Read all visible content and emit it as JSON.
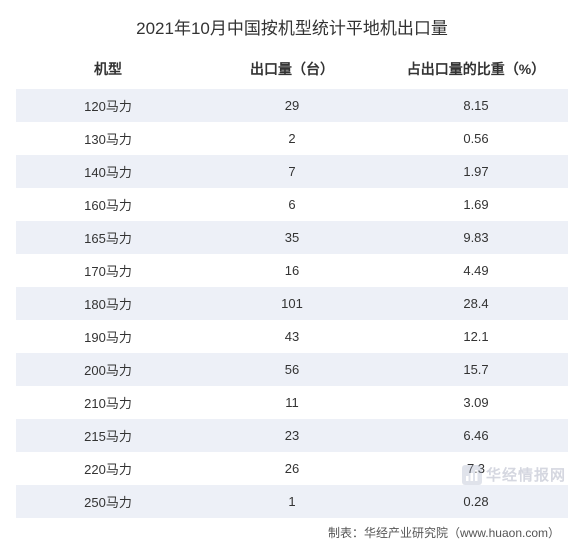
{
  "title": "2021年10月中国按机型统计平地机出口量",
  "table": {
    "type": "table",
    "columns": [
      "机型",
      "出口量（台）",
      "占出口量的比重（%）"
    ],
    "rows": [
      [
        "120马力",
        "29",
        "8.15"
      ],
      [
        "130马力",
        "2",
        "0.56"
      ],
      [
        "140马力",
        "7",
        "1.97"
      ],
      [
        "160马力",
        "6",
        "1.69"
      ],
      [
        "165马力",
        "35",
        "9.83"
      ],
      [
        "170马力",
        "16",
        "4.49"
      ],
      [
        "180马力",
        "101",
        "28.4"
      ],
      [
        "190马力",
        "43",
        "12.1"
      ],
      [
        "200马力",
        "56",
        "15.7"
      ],
      [
        "210马力",
        "11",
        "3.09"
      ],
      [
        "215马力",
        "23",
        "6.46"
      ],
      [
        "220马力",
        "26",
        "7.3"
      ],
      [
        "250马力",
        "1",
        "0.28"
      ]
    ],
    "header_fontsize": 14,
    "cell_fontsize": 13,
    "row_odd_bg": "#edf0f7",
    "row_even_bg": "#ffffff",
    "text_color": "#333333",
    "column_widths": [
      "33%",
      "33%",
      "34%"
    ]
  },
  "footer": "制表：华经产业研究院（www.huaon.com）",
  "watermark": {
    "text": "华经情报网",
    "color": "#888fa8",
    "icon_bg": "#a8b2c8"
  },
  "background_color": "#ffffff"
}
